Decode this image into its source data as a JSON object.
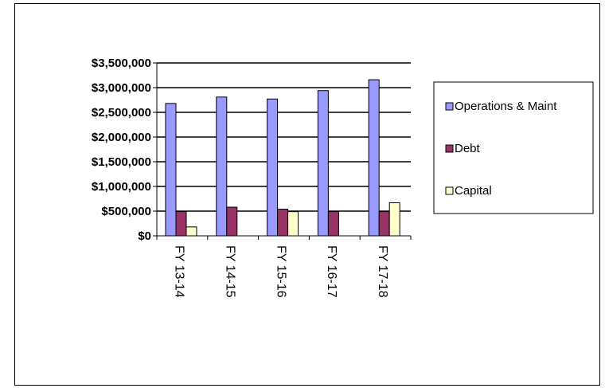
{
  "chart_data": {
    "type": "bar",
    "categories": [
      "FY 13-14",
      "FY 14-15",
      "FY 15-16",
      "FY 16-17",
      "FY 17-18"
    ],
    "series": [
      {
        "name": "Operations & Maint",
        "color": "#9999ff",
        "values": [
          2680000,
          2810000,
          2770000,
          2940000,
          3160000
        ]
      },
      {
        "name": "Debt",
        "color": "#993366",
        "values": [
          490000,
          580000,
          540000,
          490000,
          490000
        ]
      },
      {
        "name": "Capital",
        "color": "#ffffcc",
        "values": [
          180000,
          0,
          490000,
          0,
          670000
        ]
      }
    ],
    "yticks": [
      "$0",
      "$500,000",
      "$1,000,000",
      "$1,500,000",
      "$2,000,000",
      "$2,500,000",
      "$3,000,000",
      "$3,500,000"
    ],
    "ylim": [
      0,
      3500000
    ],
    "grid": true,
    "legend_position": "right"
  }
}
